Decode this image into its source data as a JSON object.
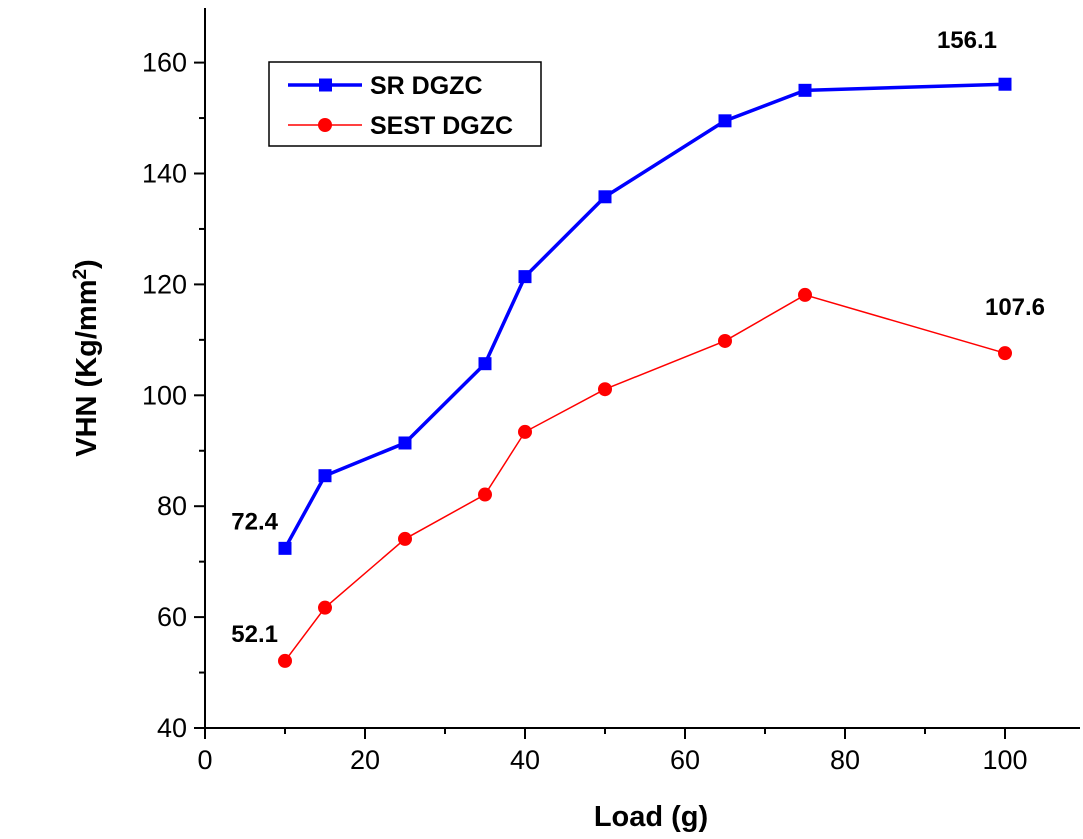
{
  "chart_data": {
    "type": "line",
    "xlabel": "Load (g)",
    "ylabel": "VHN (Kg/mm",
    "ylabel_sup": "2",
    "ylabel_end": ")",
    "xlim": [
      0,
      110
    ],
    "ylim": [
      40,
      170
    ],
    "x_ticks": [
      0,
      20,
      40,
      60,
      80,
      100
    ],
    "y_ticks": [
      40,
      60,
      80,
      100,
      120,
      140,
      160
    ],
    "grid": false,
    "legend_position": "top-left",
    "series": [
      {
        "name": "SR DGZC",
        "color": "#0000ff",
        "marker": "square",
        "x": [
          10,
          15,
          25,
          35,
          40,
          50,
          65,
          75,
          100
        ],
        "y": [
          72.4,
          85.5,
          91.4,
          105.7,
          121.4,
          135.8,
          149.5,
          155.0,
          156.1
        ]
      },
      {
        "name": "SEST DGZC",
        "color": "#ff0000",
        "marker": "circle",
        "x": [
          10,
          15,
          25,
          35,
          40,
          50,
          65,
          75,
          100
        ],
        "y": [
          52.1,
          61.7,
          74.1,
          82.1,
          93.4,
          101.1,
          109.8,
          118.1,
          107.6
        ]
      }
    ],
    "annotations": [
      {
        "text": "156.1",
        "x": 100,
        "y": 156.1,
        "pos": "above-left"
      },
      {
        "text": "107.6",
        "x": 100,
        "y": 107.6,
        "pos": "above"
      },
      {
        "text": "72.4",
        "x": 10,
        "y": 72.4,
        "pos": "left-above"
      },
      {
        "text": "52.1",
        "x": 10,
        "y": 52.1,
        "pos": "left-above"
      }
    ]
  }
}
